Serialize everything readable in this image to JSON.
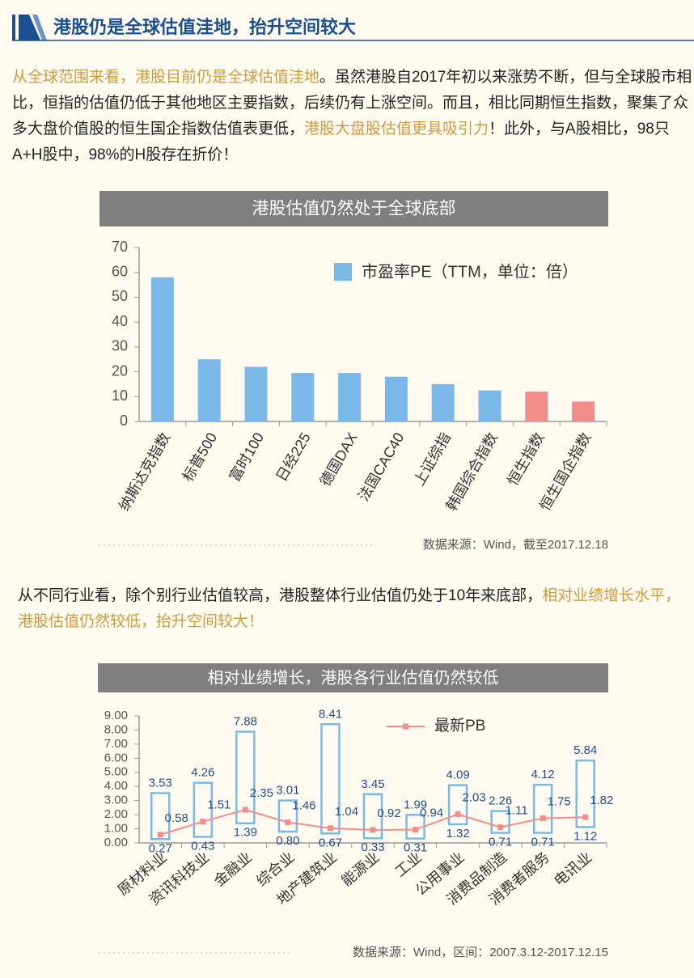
{
  "header": {
    "title": "港股仍是全球估值洼地，抬升空间较大"
  },
  "paragraphs": [
    [
      {
        "text": "从全球范围来看，港股目前仍是全球估值洼地",
        "emphasis": true
      },
      {
        "text": "。虽然港股自2017年初以来涨势不断，但与全球股市相比，恒指的估值仍低于其他地区主要指数，后续仍有上涨空间。而且，相比同期恒生指数，聚集了众多大盘价值股的恒生国企指数估值表更低，",
        "emphasis": false
      },
      {
        "text": "港股大盘股估值更具吸引力",
        "emphasis": true
      },
      {
        "text": "！此外，与A股相比，98只A+H股中，98%的H股存在折价！",
        "emphasis": false
      }
    ],
    [
      {
        "text": "从不同行业看，除个别行业估值较高，港股整体行业估值仍处于10年来底部，",
        "emphasis": false
      },
      {
        "text": "相对业绩增长水平，港股估值仍然较低，抬升空间较大！",
        "emphasis": true
      }
    ]
  ],
  "chart_data": [
    {
      "type": "bar",
      "title": "港股估值仍然处于全球底部",
      "categories": [
        "纳斯达克指数",
        "标普500",
        "富时100",
        "日经225",
        "德国DAX",
        "法国CAC40",
        "上证综指",
        "韩国综合指数",
        "恒生指数",
        "恒生国企指数"
      ],
      "series": [
        {
          "name": "市盈率PE（TTM，单位：倍）",
          "color": "#7ab8e8",
          "values": [
            58,
            25,
            22,
            19.5,
            19.5,
            18,
            15,
            12.5,
            12,
            8
          ],
          "colors": [
            "#7ab8e8",
            "#7ab8e8",
            "#7ab8e8",
            "#7ab8e8",
            "#7ab8e8",
            "#7ab8e8",
            "#7ab8e8",
            "#7ab8e8",
            "#f08f8a",
            "#f08f8a"
          ]
        }
      ],
      "ylim": [
        0,
        70
      ],
      "yticks": [
        0,
        10,
        20,
        30,
        40,
        50,
        60,
        70
      ],
      "source": "数据来源：Wind，截至2017.12.18"
    },
    {
      "type": "range",
      "title": "相对业绩增长，港股各行业估值仍然较低",
      "categories": [
        "原材料业",
        "资讯科技业",
        "金融业",
        "综合业",
        "地产建筑业",
        "能源业",
        "工业",
        "公用事业",
        "消费品制造",
        "消费者服务",
        "电讯业"
      ],
      "range": {
        "color": "#7ab8e8",
        "high": [
          3.53,
          4.26,
          7.88,
          3.01,
          8.41,
          3.45,
          1.99,
          4.09,
          2.26,
          4.12,
          5.84
        ],
        "high_labels": [
          "3.53",
          "4.26",
          "7.88",
          "3.01",
          "8.41",
          "3.45",
          "1.99",
          "4.09",
          "2.26",
          "4.12",
          "5.84"
        ],
        "low": [
          0.27,
          0.43,
          1.39,
          0.8,
          0.67,
          0.33,
          0.31,
          1.32,
          0.71,
          0.71,
          1.12
        ],
        "low_labels": [
          "0.27",
          "0.43",
          "1.39",
          "0.80",
          "0.67",
          "0.33",
          "0.31",
          "1.32",
          "0.71",
          "0.71",
          "1.12"
        ]
      },
      "series": [
        {
          "name": "最新PB",
          "color": "#f08f8a",
          "values": [
            0.58,
            1.51,
            2.35,
            1.46,
            1.04,
            0.92,
            0.94,
            2.03,
            1.11,
            1.75,
            1.82
          ],
          "value_labels": [
            "0.58",
            "1.51",
            "2.35",
            "1.46",
            "1.04",
            "0.92",
            "0.94",
            "2.03",
            "1.11",
            "1.75",
            "1.82"
          ]
        }
      ],
      "ylim": [
        0,
        9
      ],
      "yticks": [
        {
          "value": 0,
          "label": "0.00"
        },
        {
          "value": 1,
          "label": "1.00"
        },
        {
          "value": 2,
          "label": "2.00"
        },
        {
          "value": 3,
          "label": "3.00"
        },
        {
          "value": 4,
          "label": "4.00"
        },
        {
          "value": 5,
          "label": "5.00"
        },
        {
          "value": 6,
          "label": "6.00"
        },
        {
          "value": 7,
          "label": "7.00"
        },
        {
          "value": 8,
          "label": "8.00"
        },
        {
          "value": 9,
          "label": "9.00"
        }
      ],
      "source": "数据来源：Wind，区间：2007.3.12-2017.12.15"
    }
  ]
}
